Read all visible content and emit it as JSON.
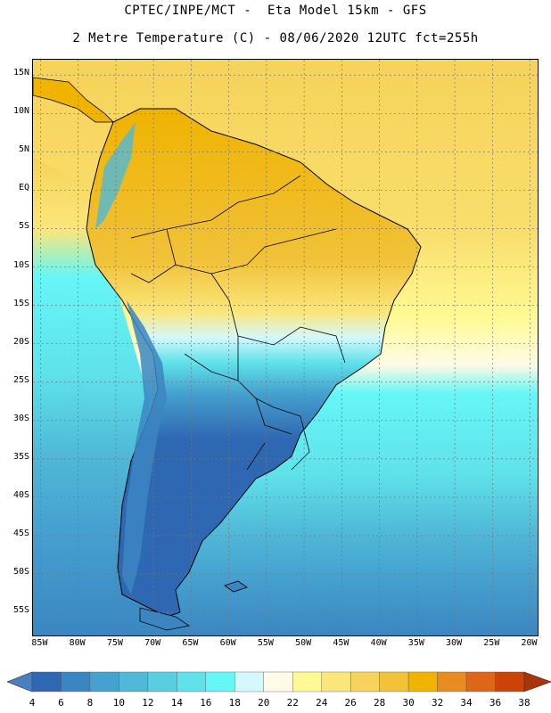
{
  "header": {
    "line1": "CPTEC/INPE/MCT -  Eta Model 15km - GFS",
    "line2": "2 Metre Temperature (C) - 08/06/2020 12UTC fct=255h"
  },
  "map": {
    "lat_labels": [
      "15N",
      "10N",
      "5N",
      "EQ",
      "5S",
      "10S",
      "15S",
      "20S",
      "25S",
      "30S",
      "35S",
      "40S",
      "45S",
      "50S",
      "55S"
    ],
    "lon_labels": [
      "85W",
      "80W",
      "75W",
      "70W",
      "65W",
      "60W",
      "55W",
      "50W",
      "45W",
      "40W",
      "35W",
      "30W",
      "25W",
      "20W"
    ],
    "lat_range": [
      17,
      -58
    ],
    "lon_range": [
      -86,
      -19
    ],
    "gridlines": "dotted"
  },
  "colorbar": {
    "levels": [
      "4",
      "6",
      "8",
      "10",
      "12",
      "14",
      "16",
      "18",
      "20",
      "22",
      "24",
      "26",
      "28",
      "30",
      "32",
      "34",
      "36",
      "38"
    ],
    "colors": [
      "#4a7fbf",
      "#2f68b2",
      "#3b86c2",
      "#45a1cf",
      "#50b9d8",
      "#58cee0",
      "#5fe2ea",
      "#66f6f6",
      "#d4f8fb",
      "#fffbe6",
      "#fffa94",
      "#fbe67b",
      "#f6d35a",
      "#f1c23a",
      "#efb300",
      "#e88c1f",
      "#dd6618",
      "#c94406",
      "#a93408"
    ]
  }
}
